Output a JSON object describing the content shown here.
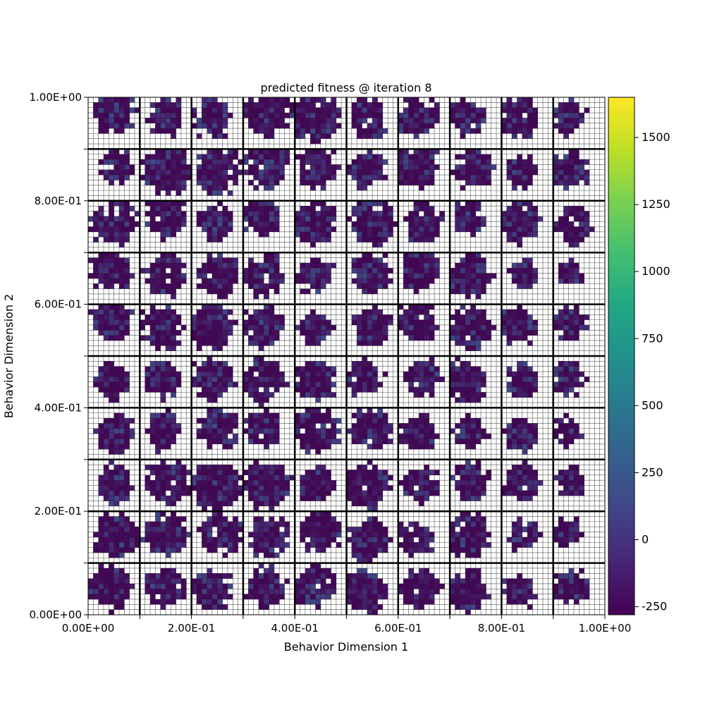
{
  "chart_data": {
    "type": "heatmap",
    "title": "predicted fitness @ iteration 8",
    "xlabel": "Behavior Dimension 1",
    "ylabel": "Behavior Dimension 2",
    "xlim": [
      0,
      1
    ],
    "ylim": [
      0,
      1
    ],
    "x_tick_labels": [
      "0.00E+00",
      "2.00E-01",
      "4.00E-01",
      "6.00E-01",
      "8.00E-01",
      "1.00E+00"
    ],
    "y_tick_labels": [
      "0.00E+00",
      "2.00E-01",
      "4.00E-01",
      "6.00E-01",
      "8.00E-01",
      "1.00E+00"
    ],
    "major_tick_values": [
      0,
      0.2,
      0.4,
      0.6,
      0.8,
      1.0
    ],
    "major_grid_step": 0.1,
    "cells_per_block": 10,
    "blocks": 10,
    "colormap": "viridis",
    "colorbar": {
      "range": [
        -280,
        1650
      ],
      "ticks": [
        -250,
        0,
        250,
        500,
        750,
        1000,
        1250,
        1500
      ]
    },
    "typical_value_range": [
      -260,
      150
    ],
    "empty_cell_color": "#ffffff",
    "grid": true
  }
}
